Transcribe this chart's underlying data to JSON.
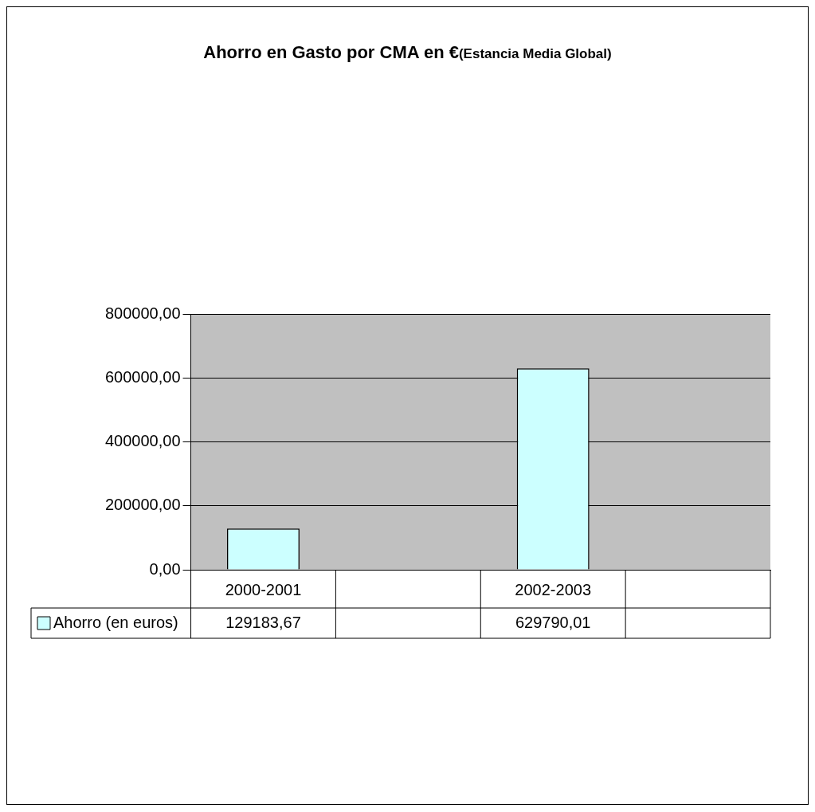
{
  "chart_data": {
    "type": "bar",
    "title": "Ahorro en Gasto por CMA en €",
    "subtitle": "(Estancia Media Global)",
    "categories": [
      "2000-2001",
      null,
      "2002-2003",
      null
    ],
    "series": [
      {
        "name": "Ahorro (en euros)",
        "color": "#ccffff",
        "values": [
          129183.67,
          null,
          629790.01,
          null
        ],
        "value_labels": [
          "129183,67",
          null,
          "629790,01",
          null
        ]
      }
    ],
    "ylim": [
      0,
      800000
    ],
    "yticks": [
      {
        "value": 0,
        "label": "0,00"
      },
      {
        "value": 200000,
        "label": "200000,00"
      },
      {
        "value": 400000,
        "label": "400000,00"
      },
      {
        "value": 600000,
        "label": "600000,00"
      },
      {
        "value": 800000,
        "label": "800000,00"
      }
    ],
    "grid": "y",
    "legend": "bottom"
  }
}
